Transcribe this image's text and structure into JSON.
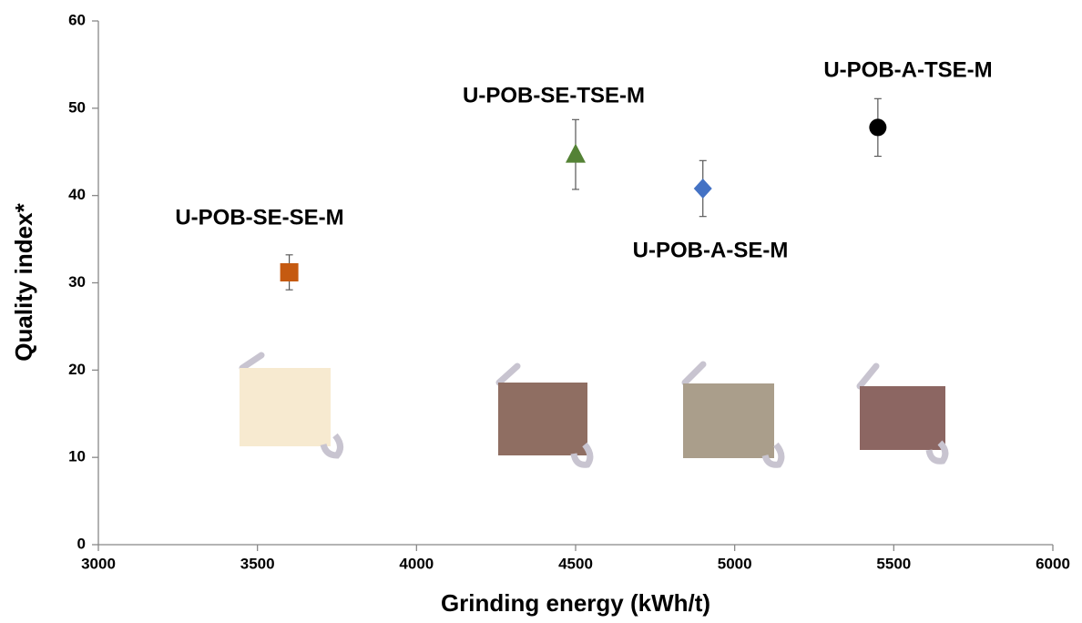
{
  "chart_data": {
    "type": "scatter",
    "x_label": "Grinding energy (kWh/t)",
    "y_label": "Quality index*",
    "xlim": [
      3000,
      6000
    ],
    "xticks": [
      3000,
      3500,
      4000,
      4500,
      5000,
      5500,
      6000
    ],
    "ylim": [
      0,
      60
    ],
    "yticks": [
      0,
      10,
      20,
      30,
      40,
      50,
      60
    ],
    "grid": false,
    "series": [
      {
        "name": "U-POB-SE-SE-M",
        "color": "#c55a11",
        "marker": "square",
        "x": [
          3600
        ],
        "values": [
          31.2
        ],
        "errors": [
          2
        ]
      },
      {
        "name": "U-POB-SE-TSE-M",
        "color": "#548235",
        "marker": "triangle",
        "x": [
          4500
        ],
        "values": [
          44.7
        ],
        "errors": [
          4
        ]
      },
      {
        "name": "U-POB-A-SE-M",
        "color": "#4472c4",
        "marker": "diamond",
        "x": [
          4900
        ],
        "values": [
          40.8
        ],
        "errors": [
          3.2
        ]
      },
      {
        "name": "U-POB-A-TSE-M",
        "color": "#000000",
        "marker": "circle",
        "x": [
          5450
        ],
        "values": [
          47.8
        ],
        "errors": [
          3.3
        ]
      }
    ]
  }
}
